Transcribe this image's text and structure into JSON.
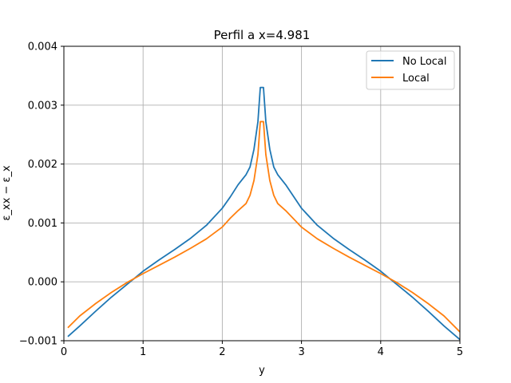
{
  "chart_data": {
    "type": "line",
    "title": "Perfil a x=4.981",
    "xlabel": "y",
    "ylabel": "ε_xx − ε_x",
    "xlim": [
      0,
      5
    ],
    "ylim": [
      -0.001,
      0.004
    ],
    "xticks": [
      0,
      1,
      2,
      3,
      4,
      5
    ],
    "xtick_labels": [
      "0",
      "1",
      "2",
      "3",
      "4",
      "5"
    ],
    "yticks": [
      -0.001,
      0.0,
      0.001,
      0.002,
      0.003,
      0.004
    ],
    "ytick_labels": [
      "−0.001",
      "0.000",
      "0.001",
      "0.002",
      "0.003",
      "0.004"
    ],
    "grid": true,
    "legend_position": "top-right",
    "series": [
      {
        "name": "No Local",
        "color": "#1f77b4",
        "x": [
          0.05,
          0.2,
          0.4,
          0.6,
          0.8,
          1.0,
          1.2,
          1.4,
          1.6,
          1.8,
          2.0,
          2.1,
          2.2,
          2.3,
          2.35,
          2.4,
          2.45,
          2.48,
          2.52,
          2.55,
          2.6,
          2.65,
          2.7,
          2.8,
          3.0,
          3.2,
          3.4,
          3.6,
          3.8,
          4.0,
          4.2,
          4.4,
          4.6,
          4.8,
          5.0
        ],
        "y": [
          -0.00093,
          -0.00075,
          -0.0005,
          -0.00026,
          -4e-05,
          0.00018,
          0.00037,
          0.00055,
          0.00074,
          0.00096,
          0.00125,
          0.00144,
          0.00165,
          0.00182,
          0.00195,
          0.00225,
          0.00272,
          0.0033,
          0.0033,
          0.00272,
          0.00225,
          0.00195,
          0.00182,
          0.00165,
          0.00125,
          0.00096,
          0.00074,
          0.00055,
          0.00037,
          0.00018,
          -4e-05,
          -0.00026,
          -0.0005,
          -0.00075,
          -0.00098
        ]
      },
      {
        "name": "Local",
        "color": "#ff7f0e",
        "x": [
          0.05,
          0.2,
          0.4,
          0.6,
          0.8,
          1.0,
          1.2,
          1.4,
          1.6,
          1.8,
          2.0,
          2.1,
          2.2,
          2.3,
          2.35,
          2.4,
          2.45,
          2.48,
          2.52,
          2.55,
          2.6,
          2.65,
          2.7,
          2.8,
          3.0,
          3.2,
          3.4,
          3.6,
          3.8,
          4.0,
          4.2,
          4.4,
          4.6,
          4.8,
          5.0
        ],
        "y": [
          -0.00078,
          -0.00058,
          -0.00037,
          -0.00018,
          -1e-05,
          0.00014,
          0.00028,
          0.00042,
          0.00057,
          0.00073,
          0.00093,
          0.00108,
          0.00121,
          0.00133,
          0.00147,
          0.00172,
          0.00216,
          0.00272,
          0.00272,
          0.00216,
          0.00172,
          0.00147,
          0.00133,
          0.00121,
          0.00093,
          0.00073,
          0.00057,
          0.00042,
          0.00028,
          0.00014,
          -1e-05,
          -0.00018,
          -0.00037,
          -0.00058,
          -0.00085
        ]
      }
    ]
  }
}
